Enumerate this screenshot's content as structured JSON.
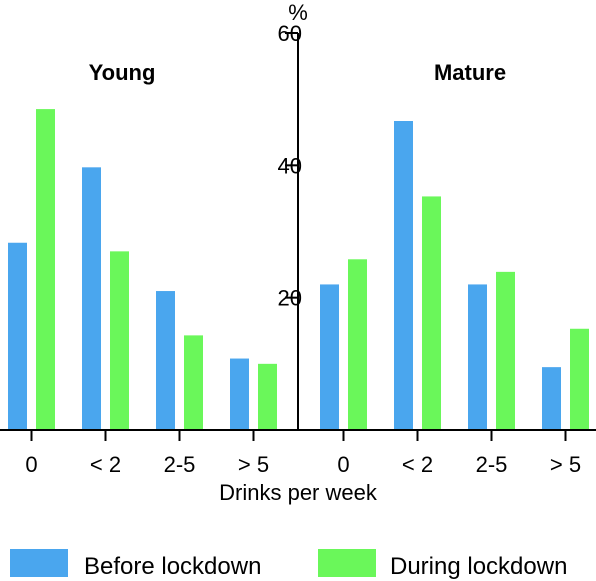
{
  "chart_data": {
    "type": "bar",
    "ylabel": "%",
    "xlabel": "Drinks per week",
    "ylim": [
      0,
      60
    ],
    "yticks": [
      20,
      40,
      60
    ],
    "grid": false,
    "legend_position": "bottom",
    "colors": {
      "before": "#4aa6ee",
      "during": "#6af75a"
    },
    "series_names": [
      "Before lockdown",
      "During lockdown"
    ],
    "panels": [
      {
        "title": "Young",
        "categories": [
          "0",
          "< 2",
          "2-5",
          "> 5"
        ],
        "series": [
          {
            "name": "Before lockdown",
            "values": [
              28.3,
              39.7,
              21.0,
              10.8
            ]
          },
          {
            "name": "During lockdown",
            "values": [
              48.5,
              27.0,
              14.3,
              10.0
            ]
          }
        ]
      },
      {
        "title": "Mature",
        "categories": [
          "0",
          "< 2",
          "2-5",
          "> 5"
        ],
        "series": [
          {
            "name": "Before lockdown",
            "values": [
              22.0,
              46.7,
              22.0,
              9.5
            ]
          },
          {
            "name": "During lockdown",
            "values": [
              25.8,
              35.3,
              23.9,
              15.3
            ]
          }
        ]
      }
    ]
  }
}
